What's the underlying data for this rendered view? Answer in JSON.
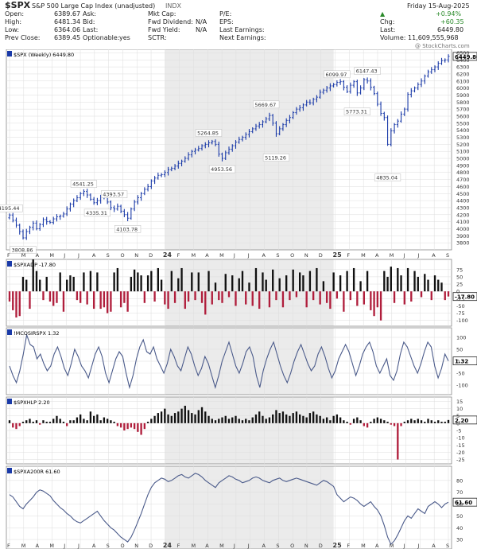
{
  "header": {
    "symbol": "$SPX",
    "name": "S&P 500 Large Cap Index (unadjusted)",
    "exchange": "INDX",
    "date": "Friday 15-Aug-2025",
    "change_pct": "+0.94%",
    "chg_label": "Chg:",
    "chg_value": "+60.35",
    "last_label": "Last:",
    "last_value": "6449.80",
    "volume": "Volume: 11,609,555,968",
    "watermark": "@ StockCharts.com",
    "col1": [
      {
        "label": "Open:",
        "value": "6389.67"
      },
      {
        "label": "High:",
        "value": "6481.34"
      },
      {
        "label": "Low:",
        "value": "6364.06"
      },
      {
        "label": "Prev Close:",
        "value": "6389.45"
      }
    ],
    "col2": [
      {
        "label": "Ask:",
        "value": ""
      },
      {
        "label": "Bid:",
        "value": ""
      },
      {
        "label": "Last:",
        "value": ""
      },
      {
        "label": "Optionable:",
        "value": "yes"
      }
    ],
    "col3": [
      {
        "label": "Mkt Cap:",
        "value": ""
      },
      {
        "label": "Fwd Dividend:",
        "value": "N/A"
      },
      {
        "label": "Fwd Yield:",
        "value": "N/A"
      },
      {
        "label": "SCTR:",
        "value": ""
      }
    ],
    "col4": [
      {
        "label": "P/E:",
        "value": ""
      },
      {
        "label": "EPS:",
        "value": ""
      },
      {
        "label": "Last Earnings:",
        "value": ""
      },
      {
        "label": "Next Earnings:",
        "value": ""
      }
    ]
  },
  "colors": {
    "price": "#1a3aa8",
    "panel_line": "#4a5a8a",
    "positive_bar": "#111111",
    "negative_bar": "#b01e3c",
    "grid": "#dddddd",
    "shade": "#ebebeb"
  },
  "chart_data": [
    {
      "type": "ohlc",
      "title": "$SPX (Weekly) 6449.80",
      "last_label": "6449.80",
      "ylim": [
        3700,
        6550
      ],
      "yticks": [
        3800,
        3900,
        4000,
        4100,
        4200,
        4300,
        4400,
        4500,
        4600,
        4700,
        4800,
        4900,
        5000,
        5100,
        5200,
        5300,
        5400,
        5500,
        5600,
        5700,
        5800,
        5900,
        6000,
        6100,
        6200,
        6300,
        6400,
        6500
      ],
      "x_labels": [
        "F",
        "M",
        "A",
        "M",
        "J",
        "J",
        "A",
        "S",
        "O",
        "N",
        "D",
        "24",
        "F",
        "M",
        "A",
        "M",
        "J",
        "J",
        "A",
        "S",
        "O",
        "N",
        "D",
        "25",
        "F",
        "M",
        "A",
        "M",
        "J",
        "J",
        "A",
        "S"
      ],
      "closes": [
        4195,
        4120,
        4050,
        3960,
        3870,
        3960,
        4020,
        4080,
        4000,
        4060,
        4130,
        4100,
        4090,
        4140,
        4170,
        4180,
        4210,
        4280,
        4350,
        4400,
        4440,
        4500,
        4530,
        4480,
        4420,
        4370,
        4400,
        4460,
        4440,
        4380,
        4300,
        4280,
        4320,
        4250,
        4200,
        4150,
        4280,
        4380,
        4440,
        4500,
        4560,
        4600,
        4680,
        4720,
        4760,
        4770,
        4800,
        4840,
        4860,
        4890,
        4930,
        4960,
        5000,
        5050,
        5100,
        5120,
        5140,
        5180,
        5200,
        5220,
        5240,
        5200,
        5060,
        5000,
        5080,
        5130,
        5180,
        5230,
        5270,
        5300,
        5340,
        5380,
        5420,
        5460,
        5480,
        5520,
        5560,
        5610,
        5500,
        5350,
        5420,
        5480,
        5540,
        5580,
        5650,
        5700,
        5720,
        5760,
        5800,
        5790,
        5840,
        5870,
        5940,
        5970,
        6000,
        6030,
        6050,
        6080,
        6090,
        6010,
        5950,
        6040,
        6090,
        5930,
        6000,
        6120,
        6100,
        6010,
        5920,
        5770,
        5640,
        5580,
        5200,
        5390,
        5480,
        5530,
        5630,
        5700,
        5910,
        5960,
        6000,
        6050,
        6100,
        6170,
        6230,
        6260,
        6300,
        6350,
        6390,
        6400,
        6450
      ],
      "annotations": [
        {
          "label": "4195.44",
          "index": 0,
          "value": 4195,
          "pos": "above"
        },
        {
          "label": "3808.86",
          "index": 4,
          "value": 3809,
          "pos": "below"
        },
        {
          "label": "4541.25",
          "index": 22,
          "value": 4541,
          "pos": "above"
        },
        {
          "label": "4335.31",
          "index": 26,
          "value": 4335,
          "pos": "below"
        },
        {
          "label": "4393.57",
          "index": 31,
          "value": 4394,
          "pos": "above"
        },
        {
          "label": "4103.78",
          "index": 35,
          "value": 4104,
          "pos": "below"
        },
        {
          "label": "5264.85",
          "index": 59,
          "value": 5265,
          "pos": "above"
        },
        {
          "label": "4953.56",
          "index": 63,
          "value": 4954,
          "pos": "below"
        },
        {
          "label": "5669.67",
          "index": 76,
          "value": 5670,
          "pos": "above"
        },
        {
          "label": "5119.26",
          "index": 79,
          "value": 5119,
          "pos": "below"
        },
        {
          "label": "6099.97",
          "index": 97,
          "value": 6100,
          "pos": "above"
        },
        {
          "label": "5773.31",
          "index": 103,
          "value": 5773,
          "pos": "below"
        },
        {
          "label": "6147.43",
          "index": 106,
          "value": 6147,
          "pos": "above"
        },
        {
          "label": "4835.04",
          "index": 112,
          "value": 4835,
          "pos": "below"
        }
      ]
    },
    {
      "type": "bar",
      "title": "$SPXADP -17.80",
      "last_label": "-17.80",
      "ylim": [
        -120,
        110
      ],
      "yticks": [
        75,
        50,
        25,
        0,
        -25,
        -50,
        -75,
        -100
      ],
      "values": [
        -35,
        -65,
        -90,
        -85,
        50,
        40,
        -60,
        110,
        70,
        40,
        -30,
        50,
        -35,
        -50,
        -40,
        65,
        -70,
        40,
        55,
        50,
        -30,
        -40,
        65,
        -45,
        70,
        -60,
        65,
        -60,
        -55,
        -75,
        -70,
        65,
        80,
        -55,
        -40,
        -70,
        50,
        75,
        65,
        55,
        -40,
        55,
        70,
        -35,
        80,
        40,
        -45,
        -60,
        70,
        -40,
        45,
        80,
        -60,
        -35,
        65,
        -30,
        65,
        -40,
        -80,
        70,
        -45,
        30,
        -30,
        -40,
        60,
        -20,
        55,
        -50,
        45,
        70,
        -45,
        30,
        -50,
        80,
        -60,
        65,
        40,
        -55,
        75,
        -30,
        45,
        -55,
        55,
        -30,
        75,
        -20,
        65,
        55,
        -55,
        70,
        -30,
        80,
        -45,
        35,
        -40,
        -60,
        65,
        -25,
        55,
        -70,
        70,
        -30,
        80,
        -50,
        35,
        -45,
        70,
        -65,
        -85,
        -55,
        -100,
        70,
        50,
        85,
        -40,
        80,
        55,
        -45,
        80,
        -35,
        70,
        50,
        -20,
        60,
        40,
        -30,
        55,
        40,
        30,
        -30,
        -17.8
      ]
    },
    {
      "type": "line",
      "title": "!MCOSIRSPX 1.32",
      "last_label": "1.32",
      "ylim": [
        -140,
        140
      ],
      "yticks": [
        100,
        50,
        0,
        -50,
        -100
      ],
      "values": [
        -20,
        -60,
        -90,
        -40,
        30,
        110,
        70,
        60,
        10,
        30,
        -10,
        -40,
        -20,
        30,
        60,
        20,
        -30,
        -60,
        -10,
        50,
        20,
        -20,
        -40,
        -70,
        -20,
        30,
        60,
        20,
        -50,
        -90,
        -40,
        10,
        40,
        20,
        -50,
        -110,
        -60,
        10,
        60,
        90,
        40,
        30,
        60,
        10,
        -20,
        -50,
        -10,
        50,
        20,
        -20,
        -40,
        10,
        60,
        30,
        -20,
        -60,
        -30,
        20,
        -10,
        -60,
        -110,
        -60,
        0,
        40,
        80,
        30,
        -20,
        -50,
        -10,
        40,
        60,
        20,
        -60,
        -110,
        -40,
        10,
        50,
        80,
        30,
        -20,
        -60,
        -90,
        -50,
        0,
        40,
        70,
        30,
        -10,
        -40,
        -20,
        30,
        60,
        20,
        -30,
        -70,
        -40,
        10,
        40,
        70,
        40,
        -10,
        -60,
        -20,
        30,
        60,
        80,
        40,
        -20,
        -50,
        -20,
        10,
        -60,
        -80,
        -40,
        30,
        80,
        60,
        20,
        -20,
        -50,
        -10,
        40,
        80,
        60,
        -20,
        -70,
        -30,
        30,
        1.32
      ]
    },
    {
      "type": "bar",
      "title": "$SPXHLP 2.20",
      "last_label": "2.20",
      "ylim": [
        -28,
        18
      ],
      "yticks": [
        15,
        10,
        5,
        0,
        -5,
        -10,
        -15,
        -20,
        -25
      ],
      "values": [
        2,
        -3,
        -4,
        -2,
        1,
        2,
        3,
        1,
        2,
        -1,
        2,
        1,
        1,
        3,
        5,
        3,
        1,
        -2,
        2,
        2,
        4,
        6,
        3,
        2,
        8,
        5,
        6,
        2,
        4,
        3,
        2,
        1,
        -2,
        -3,
        -5,
        -4,
        -3,
        -4,
        -6,
        -8,
        -4,
        1,
        3,
        5,
        7,
        8,
        10,
        6,
        5,
        7,
        8,
        10,
        12,
        9,
        7,
        6,
        9,
        11,
        8,
        5,
        3,
        2,
        3,
        4,
        5,
        3,
        4,
        5,
        3,
        2,
        3,
        2,
        4,
        6,
        8,
        5,
        3,
        4,
        6,
        9,
        7,
        8,
        6,
        5,
        7,
        8,
        6,
        5,
        4,
        7,
        8,
        6,
        5,
        3,
        4,
        2,
        5,
        6,
        4,
        2,
        1,
        -1,
        3,
        4,
        2,
        -2,
        -3,
        1,
        3,
        4,
        3,
        2,
        1,
        -1,
        -2,
        -25,
        -2,
        1,
        2,
        3,
        2,
        3,
        2,
        1,
        3,
        2,
        1,
        2,
        1,
        1,
        2.2
      ]
    },
    {
      "type": "line",
      "title": "$SPXA200R 61.60",
      "last_label": "61.60",
      "ylim": [
        22,
        92
      ],
      "yticks": [
        80,
        70,
        60,
        50,
        40,
        30
      ],
      "values": [
        68,
        66,
        62,
        58,
        56,
        60,
        63,
        66,
        70,
        72,
        71,
        69,
        67,
        63,
        60,
        57,
        55,
        52,
        50,
        47,
        45,
        44,
        46,
        48,
        50,
        52,
        54,
        50,
        46,
        43,
        40,
        38,
        35,
        32,
        30,
        28,
        32,
        38,
        45,
        52,
        60,
        68,
        74,
        78,
        80,
        82,
        81,
        79,
        80,
        82,
        84,
        85,
        83,
        82,
        84,
        86,
        85,
        83,
        80,
        78,
        76,
        74,
        78,
        80,
        82,
        84,
        83,
        81,
        80,
        78,
        79,
        80,
        82,
        83,
        82,
        80,
        79,
        78,
        80,
        81,
        82,
        80,
        79,
        80,
        81,
        82,
        81,
        80,
        79,
        78,
        77,
        76,
        78,
        80,
        79,
        77,
        75,
        68,
        65,
        62,
        64,
        66,
        65,
        63,
        60,
        58,
        60,
        62,
        58,
        55,
        50,
        42,
        32,
        26,
        29,
        34,
        40,
        46,
        50,
        48,
        52,
        56,
        54,
        52,
        58,
        60,
        62,
        60,
        57,
        60,
        61.6
      ]
    }
  ]
}
